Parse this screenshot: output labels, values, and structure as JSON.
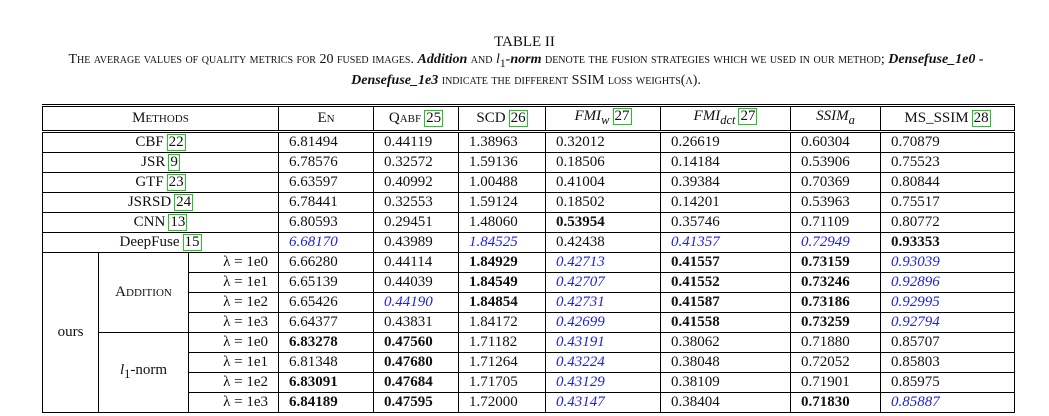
{
  "title": "TABLE II",
  "caption": [
    {
      "text": "The average values of quality metrics for 20 fused images. ",
      "style": "plain"
    },
    {
      "text": "Addition",
      "style": "bold-italic"
    },
    {
      "text": " and ",
      "style": "plain"
    },
    {
      "text": "l",
      "sub": "1",
      "style": "math"
    },
    {
      "text": "-norm",
      "style": "bold-italic"
    },
    {
      "text": " denote the fusion strategies which we used in our method; ",
      "style": "plain"
    },
    {
      "text": "Densefuse_1e0 - Densefuse_1e3",
      "style": "bold-italic"
    },
    {
      "text": " indicate the different SSIM loss weights(λ).",
      "style": "plain"
    }
  ],
  "table": {
    "header": [
      {
        "text": "Methods",
        "style": "plain"
      },
      {
        "text": "En",
        "style": "plain"
      },
      {
        "text": "Qabf",
        "cite": "25",
        "style": "plain"
      },
      {
        "text": "SCD",
        "cite": "26",
        "style": "plain"
      },
      {
        "text": "FMI",
        "sub": "w",
        "cite": "27",
        "style": "math"
      },
      {
        "text": "FMI",
        "sub": "dct",
        "cite": "27",
        "style": "math"
      },
      {
        "text": "SSIM",
        "sub": "a",
        "style": "math"
      },
      {
        "text": "MS_SSIM",
        "cite": "28",
        "style": "plain"
      }
    ],
    "rows": [
      {
        "method": "CBF",
        "cite": "22",
        "values": [
          "6.81494",
          "0.44119",
          "1.38963",
          "0.32012",
          "0.26619",
          "0.60304",
          "0.70879"
        ],
        "styles": [
          "normal",
          "normal",
          "normal",
          "normal",
          "normal",
          "normal",
          "normal"
        ]
      },
      {
        "method": "JSR",
        "cite": "9",
        "values": [
          "6.78576",
          "0.32572",
          "1.59136",
          "0.18506",
          "0.14184",
          "0.53906",
          "0.75523"
        ],
        "styles": [
          "normal",
          "normal",
          "normal",
          "normal",
          "normal",
          "normal",
          "normal"
        ]
      },
      {
        "method": "GTF",
        "cite": "23",
        "values": [
          "6.63597",
          "0.40992",
          "1.00488",
          "0.41004",
          "0.39384",
          "0.70369",
          "0.80844"
        ],
        "styles": [
          "normal",
          "normal",
          "normal",
          "normal",
          "normal",
          "normal",
          "normal"
        ]
      },
      {
        "method": "JSRSD",
        "cite": "24",
        "values": [
          "6.78441",
          "0.32553",
          "1.59124",
          "0.18502",
          "0.14201",
          "0.53963",
          "0.75517"
        ],
        "styles": [
          "normal",
          "normal",
          "normal",
          "normal",
          "normal",
          "normal",
          "normal"
        ]
      },
      {
        "method": "CNN",
        "cite": "13",
        "values": [
          "6.80593",
          "0.29451",
          "1.48060",
          "0.53954",
          "0.35746",
          "0.71109",
          "0.80772"
        ],
        "styles": [
          "normal",
          "normal",
          "normal",
          "bold",
          "normal",
          "normal",
          "normal"
        ]
      },
      {
        "method": "DeepFuse",
        "cite": "15",
        "values": [
          "6.68170",
          "0.43989",
          "1.84525",
          "0.42438",
          "0.41357",
          "0.72949",
          "0.93353"
        ],
        "styles": [
          "blue",
          "normal",
          "blue",
          "normal",
          "blue",
          "blue",
          "bold"
        ]
      }
    ],
    "ours": {
      "label": "ours",
      "strategies": [
        {
          "name": "Addition",
          "style": "plain",
          "rows": [
            {
              "lambda": "λ = 1e0",
              "values": [
                "6.66280",
                "0.44114",
                "1.84929",
                "0.42713",
                "0.41557",
                "0.73159",
                "0.93039"
              ],
              "styles": [
                "normal",
                "normal",
                "bold",
                "blue",
                "bold",
                "bold",
                "blue"
              ]
            },
            {
              "lambda": "λ = 1e1",
              "values": [
                "6.65139",
                "0.44039",
                "1.84549",
                "0.42707",
                "0.41552",
                "0.73246",
                "0.92896"
              ],
              "styles": [
                "normal",
                "normal",
                "bold",
                "blue",
                "bold",
                "bold",
                "blue"
              ]
            },
            {
              "lambda": "λ = 1e2",
              "values": [
                "6.65426",
                "0.44190",
                "1.84854",
                "0.42731",
                "0.41587",
                "0.73186",
                "0.92995"
              ],
              "styles": [
                "normal",
                "blue",
                "bold",
                "blue",
                "bold",
                "bold",
                "blue"
              ]
            },
            {
              "lambda": "λ = 1e3",
              "values": [
                "6.64377",
                "0.43831",
                "1.84172",
                "0.42699",
                "0.41558",
                "0.73259",
                "0.92794"
              ],
              "styles": [
                "normal",
                "normal",
                "normal",
                "blue",
                "bold",
                "bold",
                "blue"
              ]
            }
          ]
        },
        {
          "name": "l",
          "sub": "1",
          "suffix": "-norm",
          "style": "math",
          "rows": [
            {
              "lambda": "λ = 1e0",
              "values": [
                "6.83278",
                "0.47560",
                "1.71182",
                "0.43191",
                "0.38062",
                "0.71880",
                "0.85707"
              ],
              "styles": [
                "bold",
                "bold",
                "normal",
                "blue",
                "normal",
                "normal",
                "normal"
              ]
            },
            {
              "lambda": "λ = 1e1",
              "values": [
                "6.81348",
                "0.47680",
                "1.71264",
                "0.43224",
                "0.38048",
                "0.72052",
                "0.85803"
              ],
              "styles": [
                "normal",
                "bold",
                "normal",
                "blue",
                "normal",
                "normal",
                "normal"
              ]
            },
            {
              "lambda": "λ = 1e2",
              "values": [
                "6.83091",
                "0.47684",
                "1.71705",
                "0.43129",
                "0.38109",
                "0.71901",
                "0.85975"
              ],
              "styles": [
                "bold",
                "bold",
                "normal",
                "blue",
                "normal",
                "normal",
                "normal"
              ]
            },
            {
              "lambda": "λ = 1e3",
              "values": [
                "6.84189",
                "0.47595",
                "1.72000",
                "0.43147",
                "0.38404",
                "0.71830",
                "0.85887"
              ],
              "styles": [
                "bold",
                "bold",
                "normal",
                "blue",
                "normal",
                "bold",
                "blue"
              ]
            }
          ]
        }
      ]
    }
  }
}
